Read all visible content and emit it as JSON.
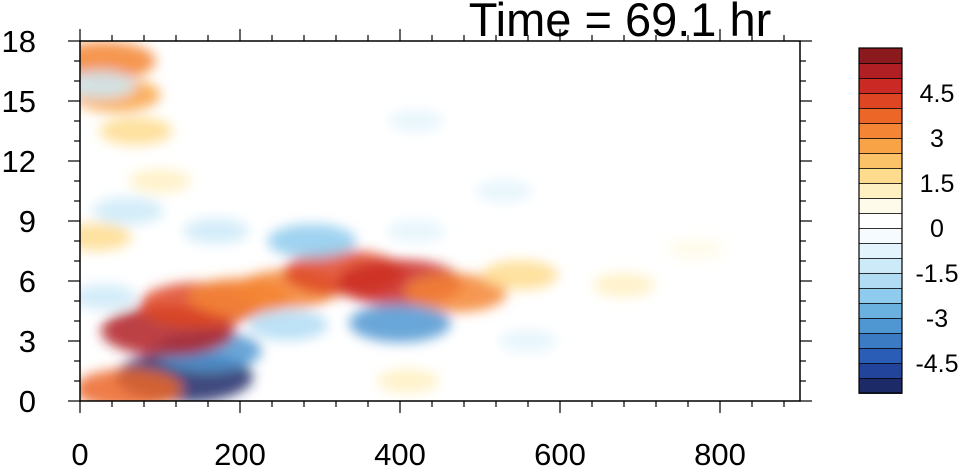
{
  "chart_data": {
    "type": "heatmap",
    "title": "Time = 69.1 hr",
    "xlabel": "",
    "ylabel": "",
    "xlim": [
      0,
      900
    ],
    "ylim": [
      0,
      18
    ],
    "x_ticks": [
      "0",
      "200",
      "400",
      "600",
      "800"
    ],
    "y_ticks": [
      "0",
      "3",
      "6",
      "9",
      "12",
      "15",
      "18"
    ],
    "x_tick_values": [
      0,
      200,
      400,
      600,
      800
    ],
    "y_tick_values": [
      0,
      3,
      6,
      9,
      12,
      15,
      18
    ],
    "colorbar": {
      "levels": [
        -5.5,
        -5,
        -4.5,
        -4,
        -3.5,
        -3,
        -2.5,
        -2,
        -1.5,
        -1,
        -0.5,
        0,
        0.5,
        1,
        1.5,
        2,
        2.5,
        3,
        3.5,
        4,
        4.5,
        5,
        5.5
      ],
      "colors": [
        "#1c2b67",
        "#23449b",
        "#2a5db5",
        "#3a7bc4",
        "#4f97d2",
        "#6bb1e0",
        "#8ecbee",
        "#b1dcf4",
        "#cdeaf8",
        "#e4f4fc",
        "#f5fbfe",
        "#ffffff",
        "#fffbea",
        "#fff0c2",
        "#fedc8e",
        "#fcc267",
        "#f9a347",
        "#f48534",
        "#ec6628",
        "#de4523",
        "#cb2a24",
        "#b01f24",
        "#8a1a1e"
      ],
      "labels": [
        "4.5",
        "3",
        "1.5",
        "0",
        "-1.5",
        "-3",
        "-4.5"
      ],
      "label_values": [
        4.5,
        3,
        1.5,
        0,
        -1.5,
        -3,
        -4.5
      ]
    },
    "features": [
      {
        "x": 130,
        "y": 1.2,
        "value": -5.2
      },
      {
        "x": 160,
        "y": 2.5,
        "value": -3.5
      },
      {
        "x": 110,
        "y": 3.5,
        "value": 5.0
      },
      {
        "x": 150,
        "y": 4.8,
        "value": 4.3
      },
      {
        "x": 200,
        "y": 5.2,
        "value": 3.2
      },
      {
        "x": 260,
        "y": 5.6,
        "value": 3.2
      },
      {
        "x": 330,
        "y": 6.4,
        "value": 4.3
      },
      {
        "x": 400,
        "y": 5.9,
        "value": 4.5
      },
      {
        "x": 470,
        "y": 5.4,
        "value": 3.2
      },
      {
        "x": 550,
        "y": 6.3,
        "value": 1.8
      },
      {
        "x": 680,
        "y": 5.8,
        "value": 1.0
      },
      {
        "x": 770,
        "y": 7.6,
        "value": 0.8
      },
      {
        "x": 400,
        "y": 3.9,
        "value": -3.2
      },
      {
        "x": 260,
        "y": 3.8,
        "value": -2.0
      },
      {
        "x": 560,
        "y": 3.0,
        "value": -0.8
      },
      {
        "x": 60,
        "y": 0.6,
        "value": 3.5
      },
      {
        "x": 30,
        "y": 17.0,
        "value": 3.3
      },
      {
        "x": 45,
        "y": 15.3,
        "value": 2.5
      },
      {
        "x": 70,
        "y": 13.5,
        "value": 1.6
      },
      {
        "x": 100,
        "y": 11.0,
        "value": 1.0
      },
      {
        "x": 25,
        "y": 15.8,
        "value": -1.5
      },
      {
        "x": 60,
        "y": 9.5,
        "value": -1.5
      },
      {
        "x": 170,
        "y": 8.5,
        "value": -1.2
      },
      {
        "x": 290,
        "y": 8.0,
        "value": -2.5
      },
      {
        "x": 420,
        "y": 8.5,
        "value": -0.8
      },
      {
        "x": 530,
        "y": 10.5,
        "value": -0.7
      },
      {
        "x": 420,
        "y": 14.0,
        "value": -0.6
      },
      {
        "x": 20,
        "y": 8.2,
        "value": 1.5
      },
      {
        "x": 410,
        "y": 1.0,
        "value": 1.0
      },
      {
        "x": 30,
        "y": 5.2,
        "value": -1.2
      }
    ]
  }
}
